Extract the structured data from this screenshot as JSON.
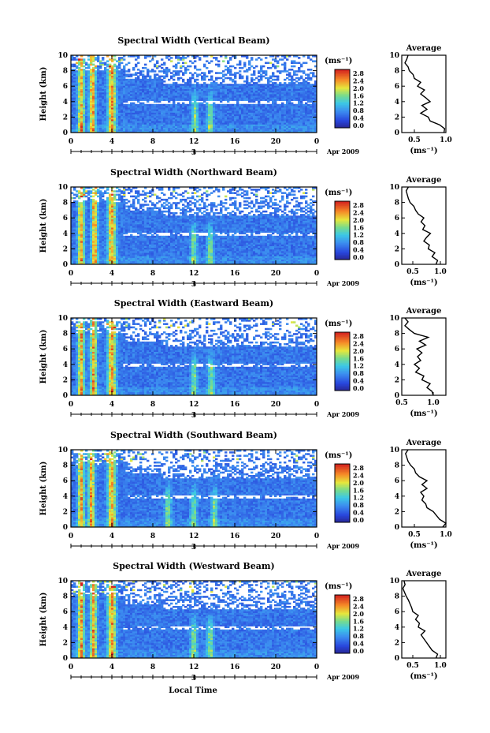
{
  "figure": {
    "x_axis_label": "Local Time",
    "date_label": "3",
    "date_suffix": "Apr 2009",
    "colorbar_unit": "(ms⁻¹)",
    "colorbar_ticks": [
      "2.8",
      "2.4",
      "2.0",
      "1.6",
      "1.2",
      "0.8",
      "0.4",
      "0.0"
    ],
    "average_title": "Average",
    "average_xlabel": "(ms⁻¹)",
    "y_label": "Height (km)"
  },
  "chart_data": [
    {
      "type": "heatmap",
      "title": "Spectral Width (Vertical Beam)",
      "xlabel": "",
      "ylabel": "Height (km)",
      "xlim": [
        0,
        24
      ],
      "ylim": [
        0,
        10
      ],
      "x_ticks": [
        "0",
        "4",
        "8",
        "12",
        "16",
        "20",
        "0"
      ],
      "y_ticks": [
        "0",
        "2",
        "4",
        "6",
        "8",
        "10"
      ],
      "colorbar": {
        "label": "(ms⁻¹)",
        "range": [
          0,
          2.8
        ]
      },
      "plumes_hour": [
        1.0,
        2.1,
        4.0,
        12.1,
        13.6
      ],
      "avg_profile": {
        "xlim": [
          0.3,
          1.0
        ],
        "x_ticks": [
          "0.5",
          "1.0"
        ],
        "height": [
          0,
          0.5,
          1,
          1.5,
          2,
          2.5,
          3,
          3.5,
          4,
          4.5,
          5,
          5.5,
          6,
          6.5,
          7,
          7.5,
          8,
          8.5,
          9,
          9.5,
          10
        ],
        "value": [
          0.97,
          0.98,
          0.9,
          0.75,
          0.72,
          0.6,
          0.7,
          0.62,
          0.75,
          0.68,
          0.6,
          0.66,
          0.55,
          0.6,
          0.5,
          0.48,
          0.42,
          0.4,
          0.35,
          0.38,
          0.4
        ]
      }
    },
    {
      "type": "heatmap",
      "title": "Spectral Width (Northward Beam)",
      "xlabel": "",
      "ylabel": "Height (km)",
      "xlim": [
        0,
        24
      ],
      "ylim": [
        0,
        10
      ],
      "x_ticks": [
        "0",
        "4",
        "8",
        "12",
        "16",
        "20",
        "0"
      ],
      "y_ticks": [
        "0",
        "2",
        "4",
        "6",
        "8",
        "10"
      ],
      "colorbar": {
        "label": "(ms⁻¹)",
        "range": [
          0,
          2.8
        ]
      },
      "plumes_hour": [
        1.0,
        2.3,
        4.0,
        12.0,
        13.6
      ],
      "avg_profile": {
        "xlim": [
          0.3,
          1.1
        ],
        "x_ticks": [
          "0.5",
          "1.0"
        ],
        "height": [
          0,
          0.5,
          1,
          1.5,
          2,
          2.5,
          3,
          3.5,
          4,
          4.5,
          5,
          5.5,
          6,
          6.5,
          7,
          7.5,
          8,
          8.5,
          9,
          9.5,
          10
        ],
        "value": [
          0.92,
          0.95,
          0.85,
          0.9,
          0.78,
          0.8,
          0.7,
          0.75,
          0.82,
          0.68,
          0.72,
          0.65,
          0.7,
          0.6,
          0.55,
          0.52,
          0.45,
          0.42,
          0.4,
          0.38,
          0.42
        ]
      }
    },
    {
      "type": "heatmap",
      "title": "Spectral Width (Eastward Beam)",
      "xlabel": "",
      "ylabel": "Height (km)",
      "xlim": [
        0,
        24
      ],
      "ylim": [
        0,
        10
      ],
      "x_ticks": [
        "0",
        "4",
        "8",
        "12",
        "16",
        "20",
        "0"
      ],
      "y_ticks": [
        "0",
        "2",
        "4",
        "6",
        "8",
        "10"
      ],
      "colorbar": {
        "label": "(ms⁻¹)",
        "range": [
          0,
          2.8
        ]
      },
      "plumes_hour": [
        1.0,
        2.2,
        4.0,
        12.0,
        13.7
      ],
      "avg_profile": {
        "xlim": [
          0.5,
          1.2
        ],
        "x_ticks": [
          "0.5",
          "1.0"
        ],
        "height": [
          0,
          0.5,
          1,
          1.5,
          2,
          2.5,
          3,
          3.5,
          4,
          4.5,
          5,
          5.5,
          6,
          6.5,
          7,
          7.5,
          8,
          8.5,
          9,
          9.5,
          10
        ],
        "value": [
          1.0,
          0.98,
          0.9,
          0.95,
          0.82,
          0.85,
          0.72,
          0.78,
          0.7,
          0.8,
          0.75,
          0.82,
          0.74,
          0.88,
          0.78,
          0.92,
          0.7,
          0.62,
          0.55,
          0.6,
          0.55
        ]
      }
    },
    {
      "type": "heatmap",
      "title": "Spectral Width (Southward Beam)",
      "xlabel": "",
      "ylabel": "Height (km)",
      "xlim": [
        0,
        24
      ],
      "ylim": [
        0,
        10
      ],
      "x_ticks": [
        "0",
        "4",
        "8",
        "12",
        "16",
        "20",
        "0"
      ],
      "y_ticks": [
        "0",
        "2",
        "4",
        "6",
        "8",
        "10"
      ],
      "colorbar": {
        "label": "(ms⁻¹)",
        "range": [
          0,
          2.8
        ]
      },
      "plumes_hour": [
        1.0,
        2.0,
        4.0,
        9.5,
        12.0,
        14.0
      ],
      "avg_profile": {
        "xlim": [
          0.3,
          1.0
        ],
        "x_ticks": [
          "0.5",
          "1.0"
        ],
        "height": [
          0,
          0.5,
          1,
          1.5,
          2,
          2.5,
          3,
          3.5,
          4,
          4.5,
          5,
          5.5,
          6,
          6.5,
          7,
          7.5,
          8,
          8.5,
          9,
          9.5,
          10
        ],
        "value": [
          0.95,
          1.0,
          0.9,
          0.85,
          0.8,
          0.7,
          0.68,
          0.62,
          0.65,
          0.6,
          0.7,
          0.62,
          0.7,
          0.58,
          0.52,
          0.5,
          0.44,
          0.4,
          0.38,
          0.36,
          0.4
        ]
      }
    },
    {
      "type": "heatmap",
      "title": "Spectral Width (Westward Beam)",
      "xlabel": "Local Time",
      "ylabel": "Height (km)",
      "xlim": [
        0,
        24
      ],
      "ylim": [
        0,
        10
      ],
      "x_ticks": [
        "0",
        "4",
        "8",
        "12",
        "16",
        "20",
        "0"
      ],
      "y_ticks": [
        "0",
        "2",
        "4",
        "6",
        "8",
        "10"
      ],
      "colorbar": {
        "label": "(ms⁻¹)",
        "range": [
          0,
          2.8
        ]
      },
      "plumes_hour": [
        1.0,
        2.2,
        4.0,
        12.0,
        13.6
      ],
      "avg_profile": {
        "xlim": [
          0.3,
          1.1
        ],
        "x_ticks": [
          "0.5",
          "1.0"
        ],
        "height": [
          0,
          0.5,
          1,
          1.5,
          2,
          2.5,
          3,
          3.5,
          4,
          4.5,
          5,
          5.5,
          6,
          6.5,
          7,
          7.5,
          8,
          8.5,
          9,
          9.5,
          10
        ],
        "value": [
          0.92,
          0.95,
          0.85,
          0.8,
          0.75,
          0.7,
          0.65,
          0.72,
          0.6,
          0.62,
          0.55,
          0.6,
          0.5,
          0.48,
          0.45,
          0.42,
          0.38,
          0.35,
          0.32,
          0.36,
          0.34
        ]
      }
    }
  ]
}
